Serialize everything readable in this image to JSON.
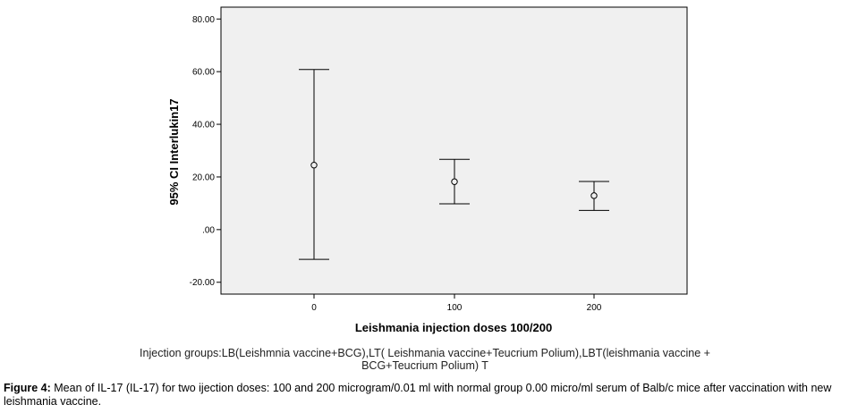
{
  "chart_data": {
    "type": "errorbar",
    "xlabel": "Leishmania injection doses 100/200",
    "ylabel": "95% CI Interlukin17",
    "categories": [
      "0",
      "100",
      "200"
    ],
    "means": [
      24.5,
      18.2,
      12.9
    ],
    "ci_lower": [
      -11.3,
      9.8,
      7.3
    ],
    "ci_upper": [
      60.8,
      26.7,
      18.3
    ],
    "yticks": [
      "-20.00",
      ".00",
      "20.00",
      "40.00",
      "60.00",
      "80.00"
    ],
    "ytick_values": [
      -20,
      0,
      20,
      40,
      60,
      80
    ],
    "ylim": [
      -24.5,
      84.5
    ],
    "grid": false,
    "colors": {
      "plot_background": "#f0f0f0",
      "marks": "#000000"
    }
  },
  "note_text": "Injection groups:LB(Leishmnia vaccine+BCG),LT( Leishmania vaccine+Teucrium Polium),LBT(leishmania vaccine + BCG+Teucrium Polium)   T",
  "caption": {
    "label": "Figure 4:",
    "text": " Mean of IL-17 (IL-17) for two ijection doses: 100 and 200 microgram/0.01 ml with normal group 0.00 micro/ml serum of Balb/c mice after vaccination with new leishmania vaccine."
  }
}
